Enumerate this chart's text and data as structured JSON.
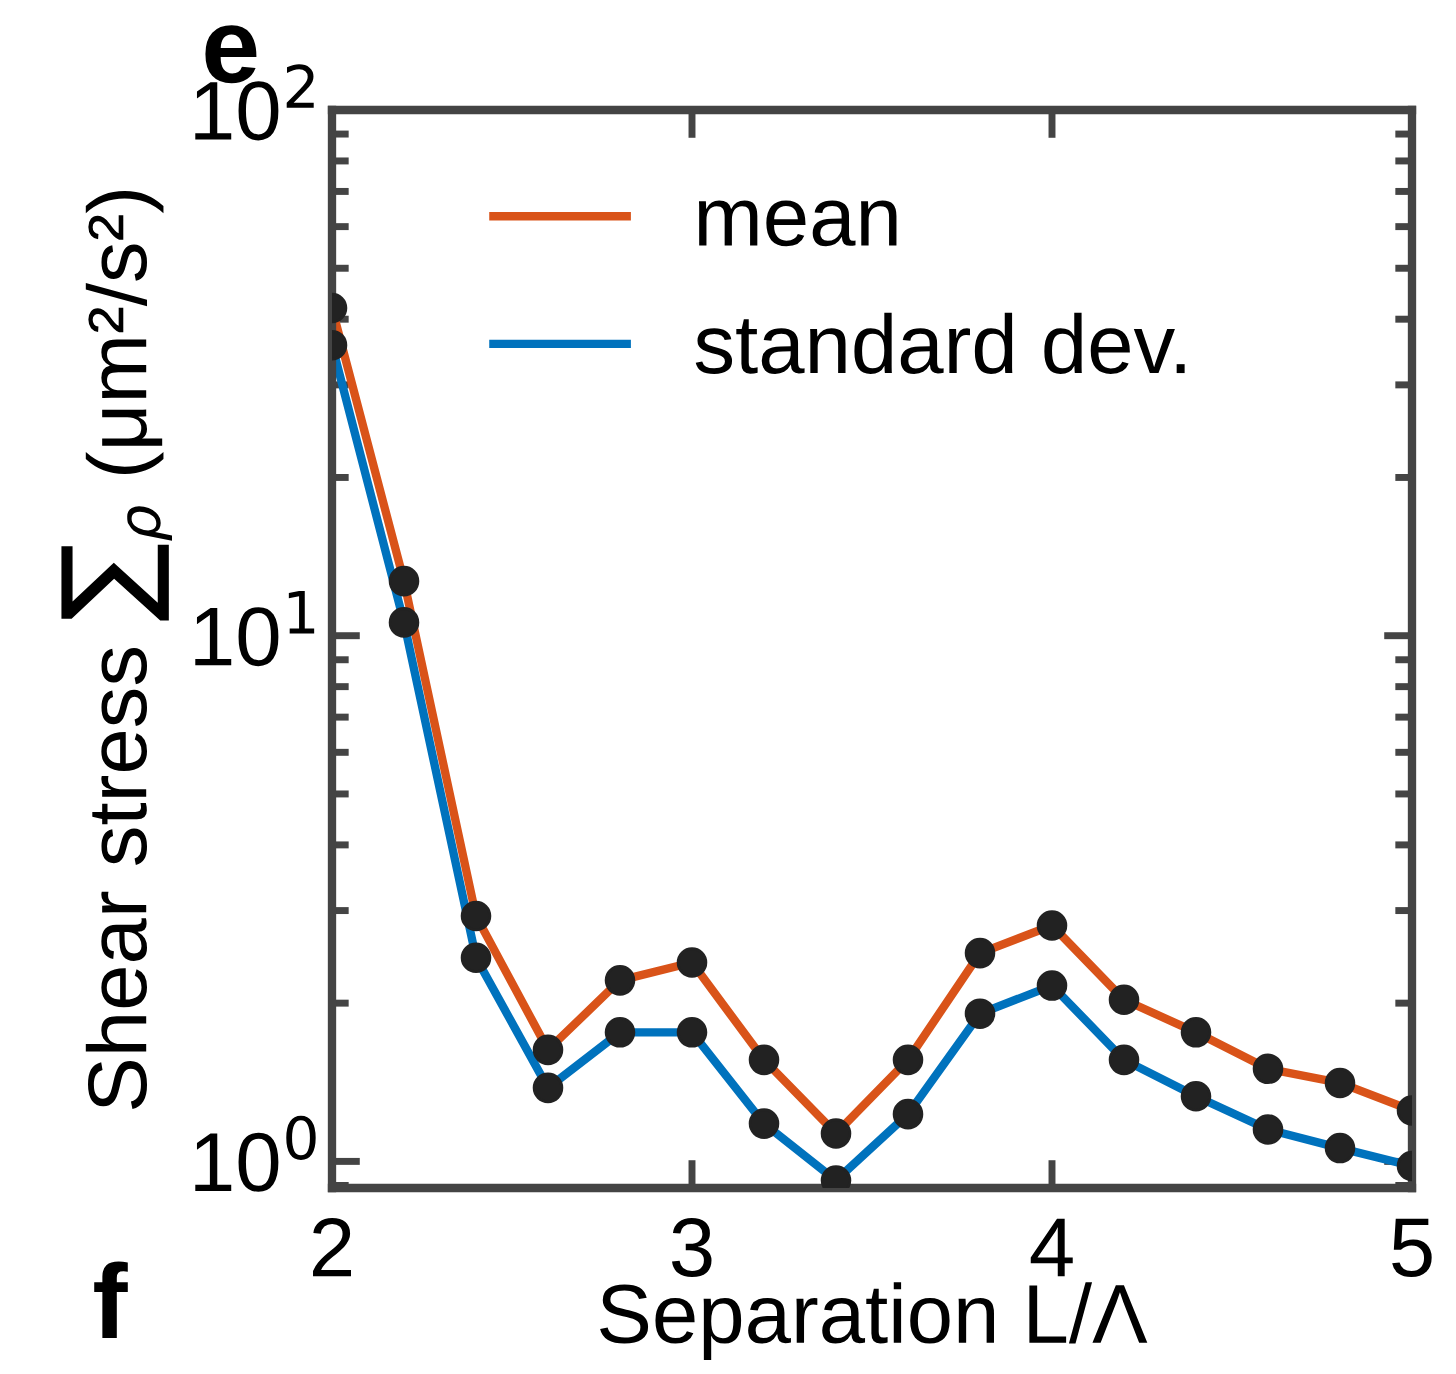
{
  "chart_data": {
    "type": "line",
    "xlabel": "Separation L/Λ",
    "ylabel": "Shear stress ∑$_{ρ}$ (μm²/s²)",
    "x": [
      2,
      2.2,
      2.4,
      2.6,
      2.8,
      3,
      3.2,
      3.4,
      3.6,
      3.8,
      4,
      4.2,
      4.4,
      4.6,
      4.8,
      5
    ],
    "series": [
      {
        "name": "mean",
        "color": "#d95319",
        "values": [
          42,
          12.7,
          2.93,
          1.63,
          2.21,
          2.39,
          1.56,
          1.13,
          1.56,
          2.49,
          2.81,
          2.03,
          1.76,
          1.5,
          1.41,
          1.25
        ]
      },
      {
        "name": "standard dev.",
        "color": "#0072bd",
        "values": [
          35.7,
          10.6,
          2.44,
          1.38,
          1.76,
          1.76,
          1.18,
          0.92,
          1.23,
          1.91,
          2.16,
          1.56,
          1.33,
          1.15,
          1.06,
          0.98
        ]
      }
    ],
    "log": "y",
    "xlim": [
      2,
      5
    ],
    "ylim": [
      0.89,
      100
    ],
    "xticks": [
      2,
      3,
      4,
      5
    ],
    "yticks": [
      {
        "value": 1,
        "label": "10$^{0}$"
      },
      {
        "value": 10,
        "label": "10$^{1}$"
      },
      {
        "value": 100,
        "label": "10$^{2}$"
      }
    ],
    "marker": "circle",
    "line_style": "solid",
    "grid": false,
    "legend": "top left",
    "annotations": [
      "e",
      "f"
    ]
  }
}
